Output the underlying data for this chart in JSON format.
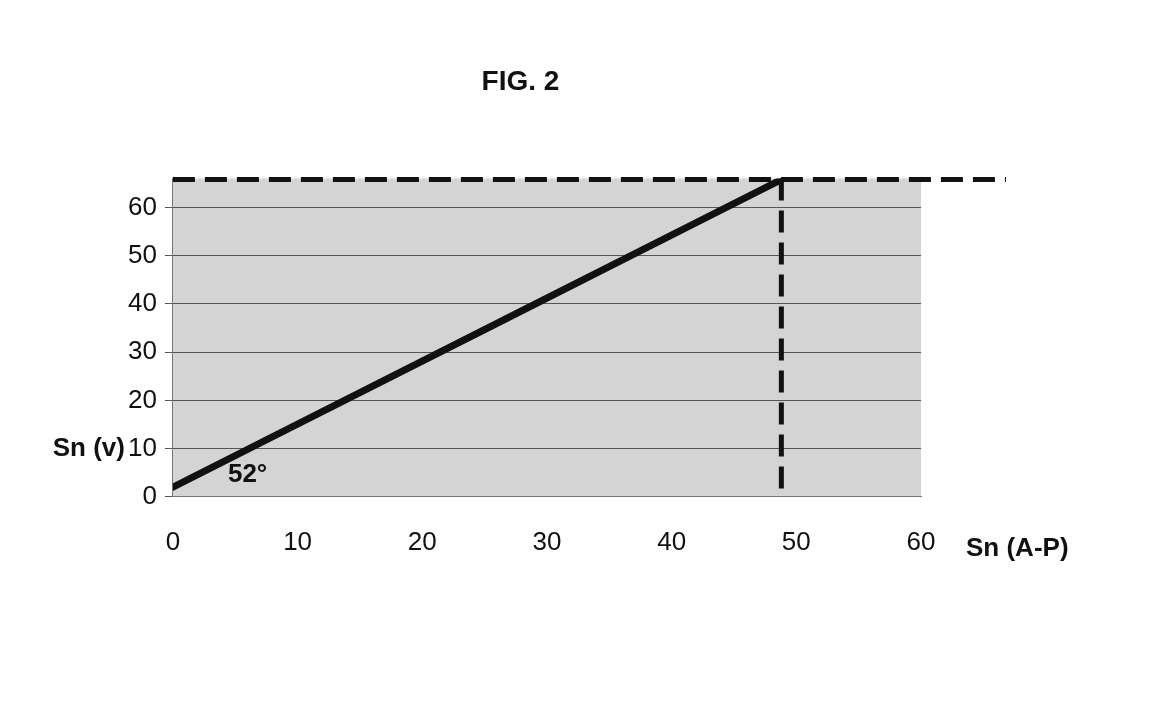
{
  "chart_data": {
    "type": "line",
    "title": "FIG. 2",
    "xlabel": "Sn (A-P)",
    "ylabel": "Sn (v)",
    "x": [
      0,
      48.8
    ],
    "series": [
      {
        "color": "#111111",
        "values": [
          2,
          65.8
        ]
      }
    ],
    "xlim": [
      0,
      60
    ],
    "xticks": [
      0,
      10,
      20,
      30,
      40,
      50,
      60
    ],
    "ylim": [
      0,
      66
    ],
    "yticks": [
      0,
      10,
      20,
      30,
      40,
      50,
      60
    ],
    "grid": "y",
    "legend": false,
    "marker": "none",
    "line_style": "solid",
    "ref_lines": [
      {
        "axis": "y",
        "value": 65.8,
        "color": "#111111",
        "line_style": "dashed"
      },
      {
        "axis": "x",
        "value": 48.8,
        "color": "#111111",
        "line_style": "dashed"
      }
    ],
    "annotations": [
      "52°"
    ]
  }
}
